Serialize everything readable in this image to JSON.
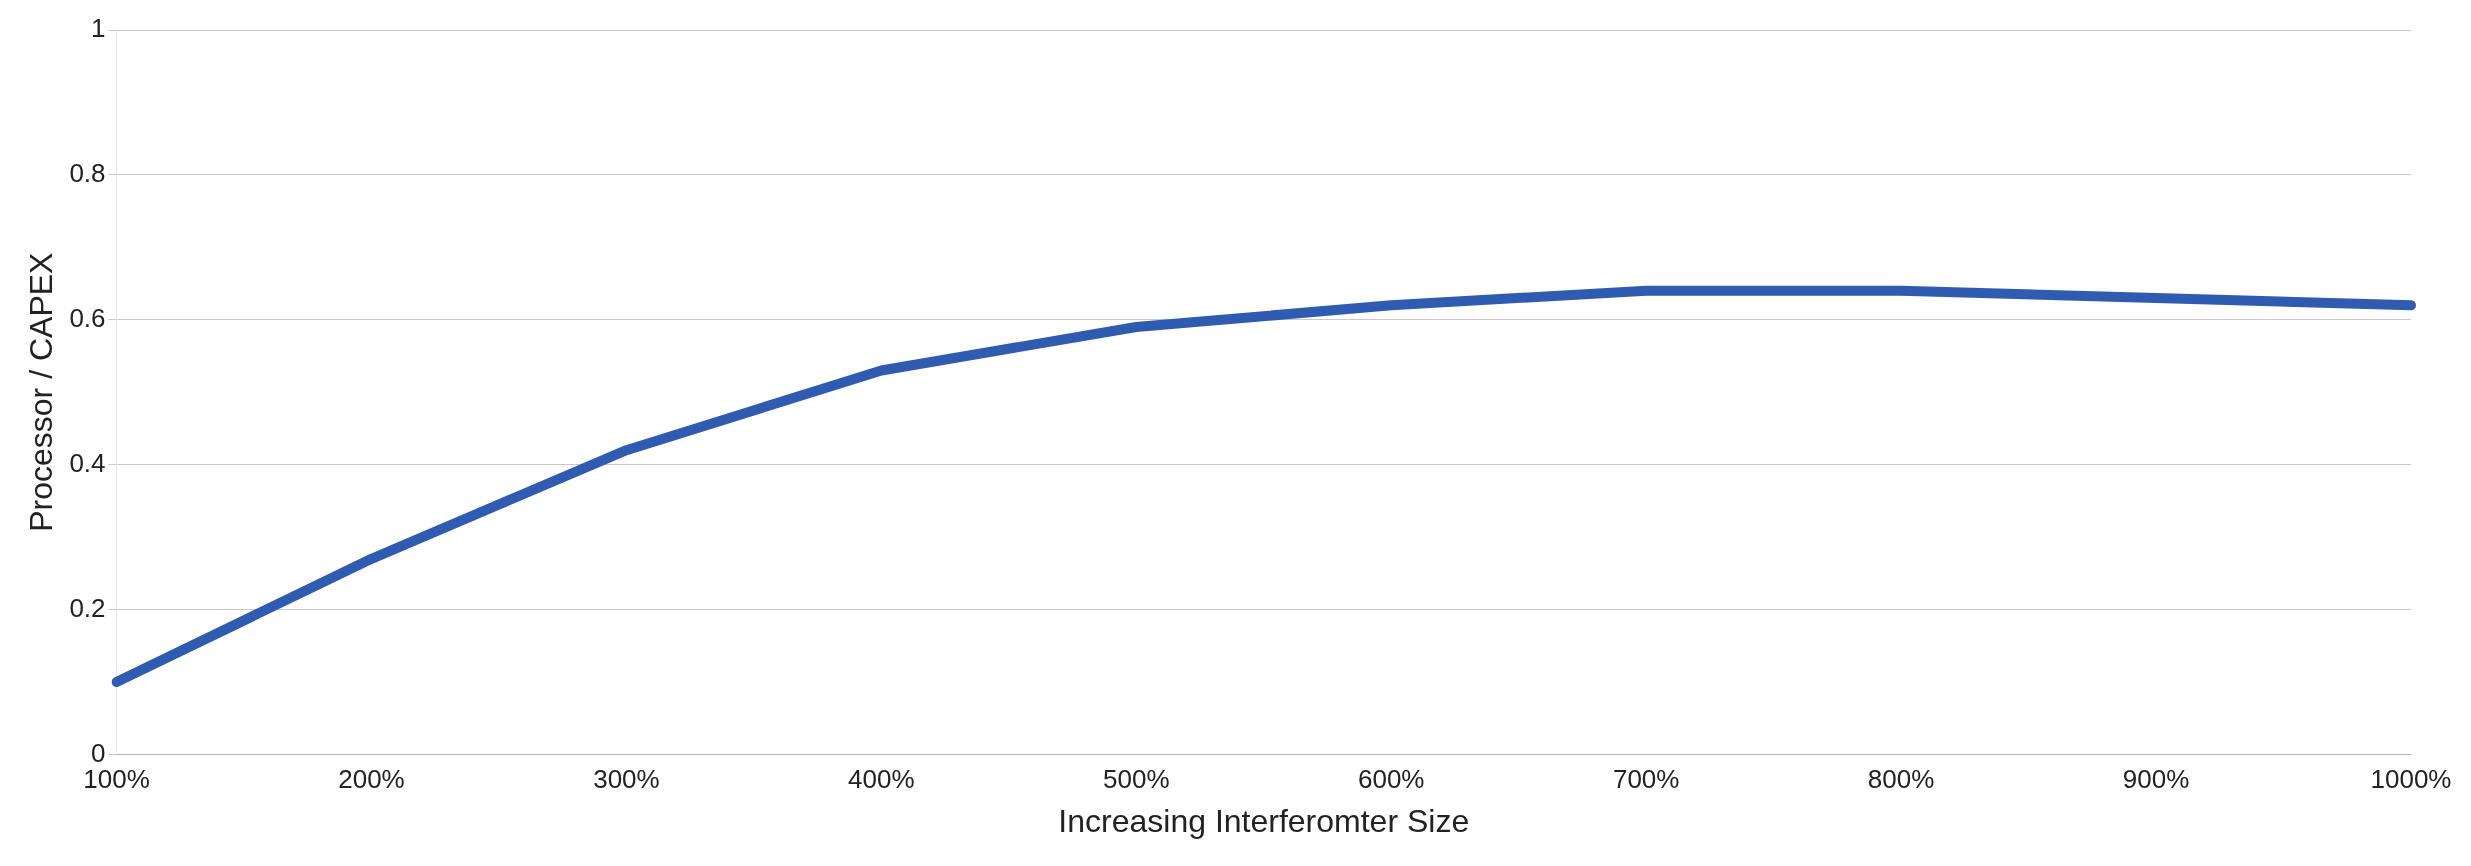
{
  "chart_data": {
    "type": "line",
    "xlabel": "Increasing Interferomter Size",
    "ylabel": "Processor / CAPEX",
    "categories": [
      "100%",
      "200%",
      "300%",
      "400%",
      "500%",
      "600%",
      "700%",
      "800%",
      "900%",
      "1000%"
    ],
    "series": [
      {
        "color": "#2f5cb0",
        "values": [
          0.1,
          0.27,
          0.42,
          0.53,
          0.59,
          0.62,
          0.64,
          0.64,
          0.63,
          0.62
        ]
      }
    ],
    "ylim": [
      0,
      1
    ],
    "yticks": [
      0,
      0.2,
      0.4,
      0.6,
      0.8,
      1
    ],
    "grid": "y",
    "marker": "none",
    "line_style": "solid"
  }
}
